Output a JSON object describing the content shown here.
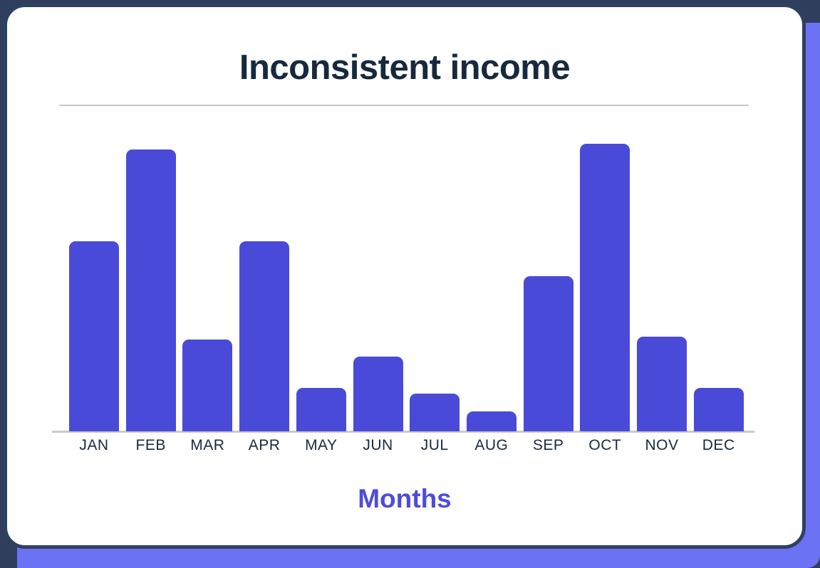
{
  "page": {
    "background_color": "#2F3E5D",
    "accent_panel_color": "#6B73F4",
    "card_background": "#FFFFFF",
    "card_border_color": "#30405F"
  },
  "chart_data": {
    "type": "bar",
    "title": "Inconsistent income",
    "xlabel": "Months",
    "ylabel": "",
    "categories": [
      "JAN",
      "FEB",
      "MAR",
      "APR",
      "MAY",
      "JUN",
      "JUL",
      "AUG",
      "SEP",
      "OCT",
      "NOV",
      "DEC"
    ],
    "values": [
      66,
      98,
      32,
      66,
      15,
      26,
      13,
      7,
      54,
      100,
      33,
      15
    ],
    "value_units": "percent of tallest bar (no y-axis or value labels shown)",
    "ylim": [
      0,
      100
    ],
    "grid": false,
    "legend": false,
    "bar_color": "#4A4AD9",
    "title_color": "#17293D",
    "tick_label_color": "#17293D",
    "xlabel_color": "#4C4CDB",
    "axis_line_color": "#C9C9C9"
  }
}
